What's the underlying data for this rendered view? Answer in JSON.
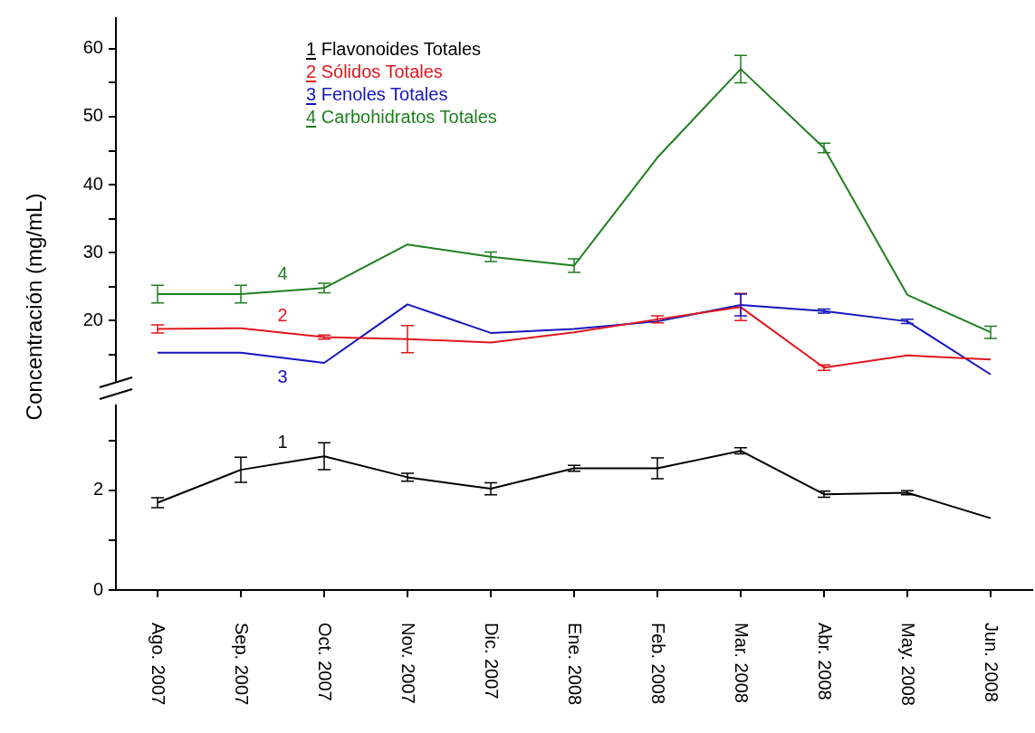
{
  "chart_data": [
    {
      "type": "line",
      "ylabel": "Concentración (mg/mL)",
      "categories": [
        null,
        null,
        null,
        null,
        null,
        null,
        null,
        null,
        null,
        null,
        null
      ],
      "series": [
        {
          "name": "2 Sólidos Totales",
          "color": "#e0161e",
          "values": [
            18.8,
            18.9,
            17.6,
            17.3,
            16.8,
            18.3,
            20.2,
            22.0,
            13.1,
            14.9,
            14.3
          ],
          "errors": [
            0.6,
            null,
            0.3,
            2.0,
            null,
            null,
            0.5,
            2.0,
            0.4,
            null,
            null
          ]
        },
        {
          "name": "3 Fenoles Totales",
          "color": "#1515c0",
          "values": [
            15.3,
            15.3,
            13.8,
            22.4,
            18.2,
            18.8,
            19.9,
            22.3,
            21.4,
            19.9,
            12.1
          ],
          "errors": [
            null,
            null,
            null,
            null,
            null,
            null,
            null,
            1.6,
            0.3,
            0.3,
            null
          ]
        },
        {
          "name": "4 Carbohidratos Totales",
          "color": "#1f7f1f",
          "values": [
            23.9,
            23.9,
            24.8,
            31.2,
            29.4,
            28.1,
            44.0,
            57.0,
            45.4,
            23.8,
            18.3
          ],
          "errors": [
            1.3,
            1.3,
            0.7,
            null,
            0.7,
            1.0,
            null,
            2.0,
            0.7,
            null,
            0.9
          ]
        }
      ],
      "ylim": [
        11,
        64.5
      ],
      "yticks": [
        {
          "value": 15,
          "label": null
        },
        20,
        {
          "value": 25,
          "label": null
        },
        30,
        {
          "value": 35,
          "label": null
        },
        40,
        {
          "value": 45,
          "label": null
        },
        50,
        {
          "value": 55,
          "label": null
        },
        60
      ],
      "annotations": [
        "2",
        "3",
        "4"
      ],
      "tick_labels": "y",
      "legend": "top left",
      "grid": false,
      "marker": "none",
      "line_style": "solid"
    },
    {
      "type": "line",
      "categories": [
        "Ago. 2007",
        "Sep. 2007",
        "Oct. 2007",
        "Nov. 2007",
        "Dic. 2007",
        "Ene. 2008",
        "Feb. 2008",
        "Mar. 2008",
        "Abr. 2008",
        "May. 2008",
        "Jun. 2008"
      ],
      "series": [
        {
          "name": "1 Flavonoides Totales",
          "color": "#000000",
          "values": [
            1.75,
            2.41,
            2.68,
            2.26,
            2.03,
            2.44,
            2.44,
            2.79,
            1.92,
            1.95,
            1.44
          ],
          "errors": [
            0.1,
            0.25,
            0.27,
            0.08,
            0.12,
            0.06,
            0.21,
            0.06,
            0.06,
            0.04,
            null
          ]
        }
      ],
      "ylim": [
        0,
        3.7
      ],
      "yticks": [
        0,
        {
          "value": 1,
          "label": null
        },
        2,
        {
          "value": 3,
          "label": null
        }
      ],
      "annotations": [
        "1"
      ],
      "legend": "top left",
      "grid": false,
      "marker": "none",
      "line_style": "solid"
    }
  ]
}
